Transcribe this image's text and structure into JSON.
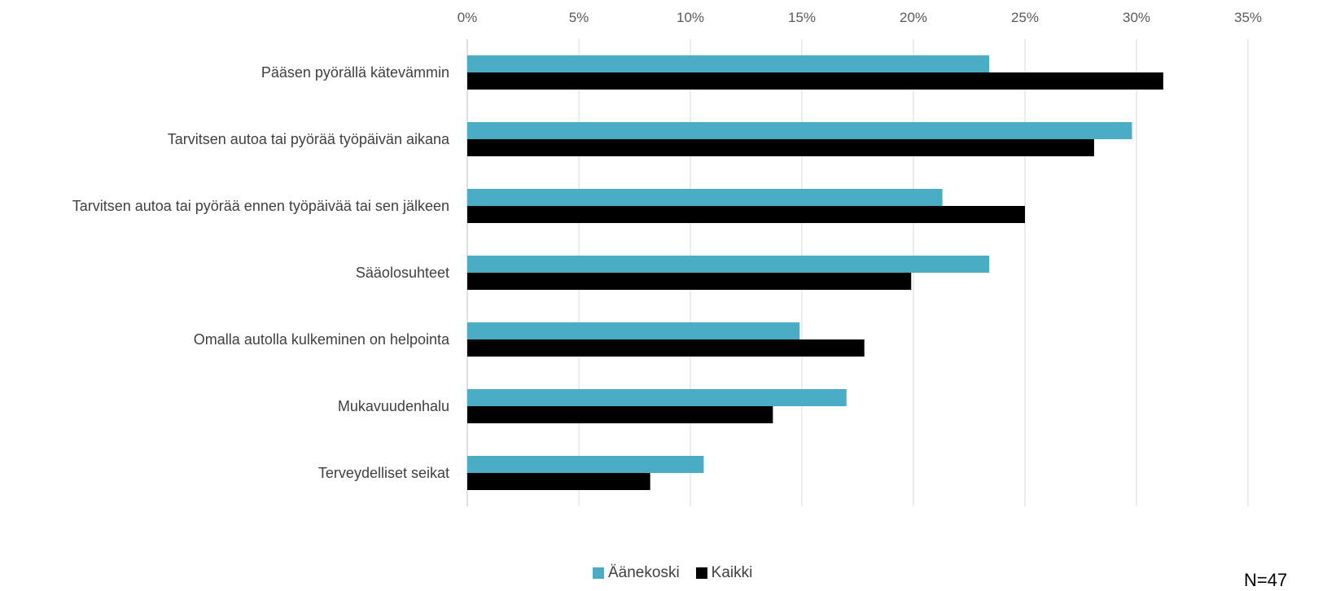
{
  "chart_data": {
    "type": "bar",
    "orientation": "horizontal",
    "categories": [
      "Pääsen pyörällä kätevämmin",
      "Tarvitsen autoa tai pyörää työpäivän aikana",
      "Tarvitsen autoa tai pyörää ennen työpäivää tai sen jälkeen",
      "Sääolosuhteet",
      "Omalla autolla kulkeminen on helpointa",
      "Mukavuudenhalu",
      "Terveydelliset seikat"
    ],
    "series": [
      {
        "name": "Äänekoski",
        "color": "#4bacc6",
        "values": [
          23.4,
          29.8,
          21.3,
          23.4,
          14.9,
          17.0,
          10.6
        ]
      },
      {
        "name": "Kaikki",
        "color": "#000000",
        "values": [
          31.2,
          28.1,
          25.0,
          19.9,
          17.8,
          13.7,
          8.2
        ]
      }
    ],
    "xlim": [
      0,
      35
    ],
    "x_ticks": [
      "0%",
      "5%",
      "10%",
      "15%",
      "20%",
      "25%",
      "30%",
      "35%"
    ],
    "x_tick_values": [
      0,
      5,
      10,
      15,
      20,
      25,
      30,
      35
    ],
    "x_axis_position": "top",
    "grid": true,
    "legend_position": "bottom",
    "title": "",
    "xlabel": "",
    "ylabel": ""
  },
  "note": "N=47"
}
